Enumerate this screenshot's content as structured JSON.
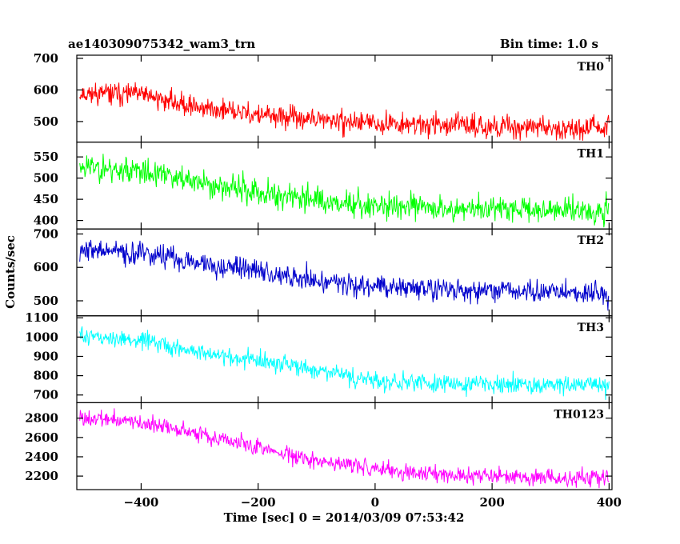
{
  "header": {
    "title": "ae140309075342_wam3_trn",
    "bin_time": "Bin time: 1.0 s"
  },
  "chart_data": {
    "type": "line",
    "xlabel": "Time [sec] 0 = 2014/03/09 07:53:42",
    "ylabel": "Counts/sec",
    "xlim": [
      -510,
      405
    ],
    "x_ticks": [
      -400,
      -200,
      0,
      200,
      400
    ],
    "x_tick_labels": [
      "−400",
      "−200",
      "0",
      "200",
      "400"
    ],
    "x_range": [
      -505,
      400
    ],
    "bin": 1.0,
    "panels": [
      {
        "name": "TH0",
        "color": "#ff0000",
        "ylim": [
          435,
          710
        ],
        "yticks": [
          500,
          600,
          700
        ],
        "trend": [
          [
            -505,
            590
          ],
          [
            -400,
            585
          ],
          [
            -300,
            545
          ],
          [
            -200,
            520
          ],
          [
            -100,
            505
          ],
          [
            0,
            495
          ],
          [
            100,
            490
          ],
          [
            200,
            485
          ],
          [
            300,
            482
          ],
          [
            400,
            478
          ]
        ],
        "noise": 24,
        "seed": 11
      },
      {
        "name": "TH1",
        "color": "#00ff00",
        "ylim": [
          380,
          585
        ],
        "yticks": [
          400,
          450,
          500,
          550
        ],
        "trend": [
          [
            -505,
            530
          ],
          [
            -400,
            515
          ],
          [
            -300,
            490
          ],
          [
            -200,
            465
          ],
          [
            -100,
            450
          ],
          [
            0,
            435
          ],
          [
            100,
            430
          ],
          [
            200,
            428
          ],
          [
            300,
            425
          ],
          [
            400,
            425
          ]
        ],
        "noise": 22,
        "seed": 23
      },
      {
        "name": "TH2",
        "color": "#0000cc",
        "ylim": [
          455,
          715
        ],
        "yticks": [
          500,
          600,
          700
        ],
        "trend": [
          [
            -505,
            655
          ],
          [
            -400,
            640
          ],
          [
            -300,
            615
          ],
          [
            -200,
            590
          ],
          [
            -100,
            560
          ],
          [
            0,
            545
          ],
          [
            100,
            535
          ],
          [
            200,
            530
          ],
          [
            300,
            525
          ],
          [
            400,
            520
          ]
        ],
        "noise": 24,
        "seed": 37
      },
      {
        "name": "TH3",
        "color": "#00ffff",
        "ylim": [
          660,
          1110
        ],
        "yticks": [
          700,
          800,
          900,
          1000,
          1100
        ],
        "trend": [
          [
            -505,
            1010
          ],
          [
            -400,
            980
          ],
          [
            -300,
            920
          ],
          [
            -200,
            875
          ],
          [
            -100,
            830
          ],
          [
            0,
            770
          ],
          [
            100,
            760
          ],
          [
            200,
            755
          ],
          [
            300,
            752
          ],
          [
            400,
            750
          ]
        ],
        "noise": 32,
        "seed": 51
      },
      {
        "name": "TH0123",
        "color": "#ff00ff",
        "ylim": [
          2060,
          2960
        ],
        "yticks": [
          2200,
          2400,
          2600,
          2800
        ],
        "trend": [
          [
            -505,
            2800
          ],
          [
            -400,
            2760
          ],
          [
            -300,
            2640
          ],
          [
            -200,
            2500
          ],
          [
            -100,
            2360
          ],
          [
            0,
            2270
          ],
          [
            100,
            2220
          ],
          [
            200,
            2200
          ],
          [
            300,
            2180
          ],
          [
            400,
            2180
          ]
        ],
        "noise": 60,
        "seed": 73
      }
    ]
  }
}
